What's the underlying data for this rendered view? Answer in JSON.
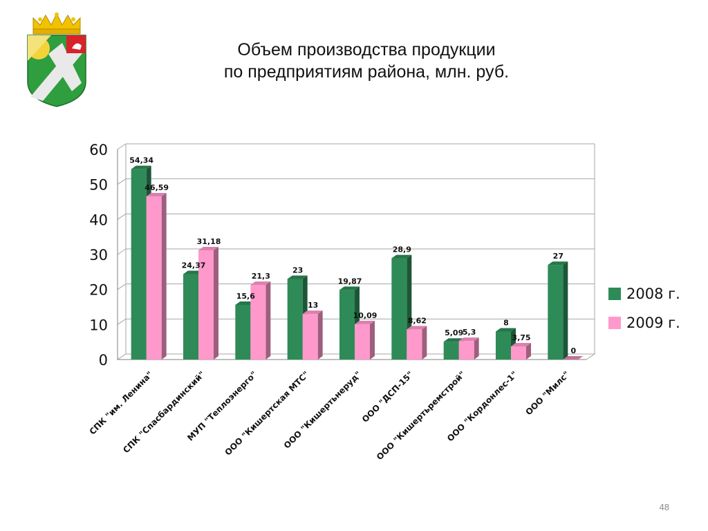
{
  "slide": {
    "title_line1": "Объем производства продукции",
    "title_line2": "по предприятиям района, млн. руб.",
    "page_number": "48"
  },
  "colors": {
    "series_2008": "#2e8b57",
    "series_2009": "#ff99cc",
    "grid": "#a6a6a6",
    "text": "#111111"
  },
  "chart_data": {
    "type": "bar",
    "title": "Объем производства продукции по предприятиям района, млн. руб.",
    "xlabel": "",
    "ylabel": "",
    "ylim": [
      0,
      60
    ],
    "yticks": [
      0,
      10,
      20,
      30,
      40,
      50,
      60
    ],
    "grid": true,
    "legend_position": "right",
    "categories": [
      "СПК \"им. Ленина\"",
      "СПК \"Спасбардинский\"",
      "МУП \"Теплоэнерго\"",
      "ООО \"Кишертская МТС\"",
      "ООО \"Кишертьнеруд\"",
      "ООО \"ДСП-15\"",
      "ООО \"Кишертьремстрой\"",
      "ООО \"Кордонлес-1\"",
      "ООО \"Милс\""
    ],
    "series": [
      {
        "name": "2008 г.",
        "values": [
          54.34,
          24.37,
          15.6,
          23,
          19.87,
          28.9,
          5.09,
          8,
          27
        ],
        "labels": [
          "54,34",
          "24,37",
          "15,6",
          "23",
          "19,87",
          "28,9",
          "5,09",
          "8",
          "27"
        ]
      },
      {
        "name": "2009 г.",
        "values": [
          46.59,
          31.18,
          21.3,
          13,
          10.09,
          8.62,
          5.3,
          3.75,
          0
        ],
        "labels": [
          "46,59",
          "31,18",
          "21,3",
          "13",
          "10,09",
          "8,62",
          "5,3",
          "3,75",
          "0"
        ]
      }
    ]
  }
}
